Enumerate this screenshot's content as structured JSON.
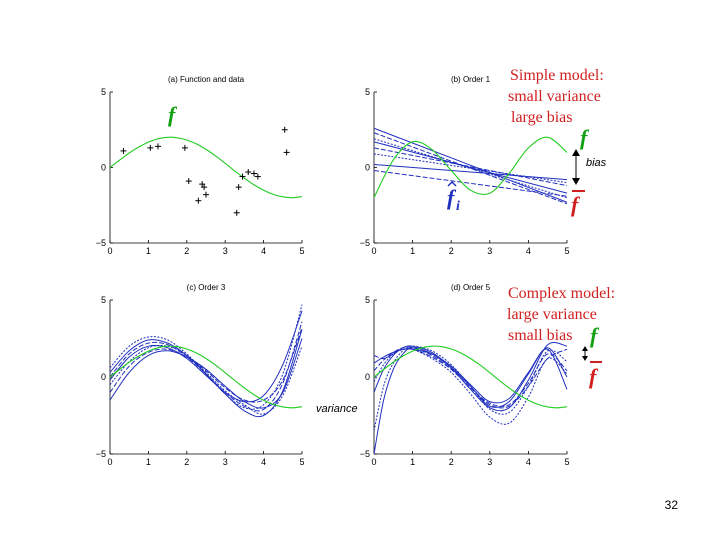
{
  "page_number": "32",
  "colors": {
    "true_function": "#22cc22",
    "fits": "#1f2fbf",
    "annotation_red": "#d02020",
    "annotation_green": "#12a012",
    "data_marker": "#000000"
  },
  "annotations": {
    "simple_model": [
      "Simple model:",
      "small variance",
      "large bias"
    ],
    "complex_model": [
      "Complex model:",
      "large variance",
      "small bias"
    ],
    "f_label": "f",
    "f_bar_label": "f",
    "f_hat_label": "f",
    "f_hat_subscript": "i",
    "bias_label": "bias",
    "variance_label": "variance"
  },
  "chart_data": [
    {
      "type": "line",
      "title": "(a) Function and data",
      "xlim": [
        0,
        5
      ],
      "ylim": [
        -5,
        5
      ],
      "xticks": [
        "0",
        "1",
        "2",
        "3",
        "4",
        "5"
      ],
      "yticks": [
        "-5",
        "0",
        "5"
      ],
      "series": [
        {
          "name": "f",
          "kind": "true_function",
          "x": [
            0.0,
            0.25,
            0.5,
            0.75,
            1.0,
            1.25,
            1.5,
            1.75,
            2.0,
            2.25,
            2.5,
            2.75,
            3.0,
            3.25,
            3.5,
            3.75,
            4.0,
            4.25,
            4.5,
            4.75,
            5.0
          ],
          "y": [
            0.0,
            0.49,
            0.96,
            1.36,
            1.68,
            1.9,
            2.0,
            1.97,
            1.82,
            1.56,
            1.2,
            0.77,
            0.28,
            -0.23,
            -0.71,
            -1.15,
            -1.51,
            -1.78,
            -1.94,
            -2.0,
            -1.93
          ]
        }
      ],
      "scatter": {
        "marker": "+",
        "x": [
          0.35,
          1.05,
          1.25,
          1.95,
          2.05,
          2.3,
          2.4,
          2.45,
          2.5,
          3.3,
          3.35,
          3.45,
          3.6,
          3.75,
          3.85,
          4.55,
          4.6
        ],
        "y": [
          1.1,
          1.3,
          1.4,
          1.3,
          -0.9,
          -2.2,
          -1.1,
          -1.3,
          -1.8,
          -3.0,
          -1.3,
          -0.6,
          -0.3,
          -0.4,
          -0.6,
          2.5,
          1.0
        ]
      }
    },
    {
      "type": "line",
      "title": "(b) Order 1",
      "xlim": [
        0,
        5
      ],
      "ylim": [
        -5,
        5
      ],
      "xticks": [
        "0",
        "1",
        "2",
        "3",
        "4",
        "5"
      ],
      "yticks": [
        "-5",
        "0",
        "5"
      ],
      "true_function": {
        "x": [
          0.0,
          0.5,
          1.0,
          1.5,
          2.0,
          2.5,
          3.0,
          3.5,
          4.0,
          4.5,
          5.0
        ],
        "y": [
          -2.0,
          0.5,
          1.7,
          1.2,
          -0.2,
          -1.5,
          -1.7,
          -0.4,
          1.3,
          2.0,
          1.0
        ]
      },
      "fits": [
        {
          "x": [
            0,
            5
          ],
          "y": [
            2.6,
            -2.3
          ]
        },
        {
          "x": [
            0,
            5
          ],
          "y": [
            2.3,
            -2.4
          ]
        },
        {
          "x": [
            0,
            5
          ],
          "y": [
            1.9,
            -2.0
          ]
        },
        {
          "x": [
            0,
            5
          ],
          "y": [
            1.7,
            -1.7
          ]
        },
        {
          "x": [
            0,
            5
          ],
          "y": [
            1.3,
            -1.2
          ]
        },
        {
          "x": [
            0,
            5
          ],
          "y": [
            0.9,
            -1.0
          ]
        },
        {
          "x": [
            0,
            5
          ],
          "y": [
            0.2,
            -0.8
          ]
        },
        {
          "x": [
            0,
            5
          ],
          "y": [
            -0.2,
            -1.9
          ]
        }
      ]
    },
    {
      "type": "line",
      "title": "(c) Order 3",
      "xlim": [
        0,
        5
      ],
      "ylim": [
        -5,
        5
      ],
      "xticks": [
        "0",
        "1",
        "2",
        "3",
        "4",
        "5"
      ],
      "yticks": [
        "-5",
        "0",
        "5"
      ],
      "true_function": {
        "x": [
          0.0,
          0.25,
          0.5,
          0.75,
          1.0,
          1.25,
          1.5,
          1.75,
          2.0,
          2.25,
          2.5,
          2.75,
          3.0,
          3.25,
          3.5,
          3.75,
          4.0,
          4.25,
          4.5,
          4.75,
          5.0
        ],
        "y": [
          0.0,
          0.49,
          0.96,
          1.36,
          1.68,
          1.9,
          2.0,
          1.97,
          1.82,
          1.56,
          1.2,
          0.77,
          0.28,
          -0.23,
          -0.71,
          -1.15,
          -1.51,
          -1.78,
          -1.94,
          -2.0,
          -1.93
        ]
      },
      "fits": [
        {
          "x": [
            0.0,
            0.5,
            1.0,
            1.5,
            2.0,
            2.5,
            3.0,
            3.5,
            4.0,
            4.5,
            5.0
          ],
          "y": [
            -0.2,
            1.3,
            2.0,
            1.9,
            1.2,
            0.1,
            -1.0,
            -1.6,
            -1.2,
            0.8,
            4.3
          ]
        },
        {
          "x": [
            0.0,
            0.5,
            1.0,
            1.5,
            2.0,
            2.5,
            3.0,
            3.5,
            4.0,
            4.5,
            5.0
          ],
          "y": [
            -1.0,
            0.7,
            1.6,
            1.8,
            1.3,
            0.4,
            -0.7,
            -1.5,
            -1.5,
            -0.2,
            3.2
          ]
        },
        {
          "x": [
            0.0,
            0.5,
            1.0,
            1.5,
            2.0,
            2.5,
            3.0,
            3.5,
            4.0,
            4.5,
            5.0
          ],
          "y": [
            0.6,
            2.0,
            2.6,
            2.4,
            1.5,
            0.2,
            -1.1,
            -2.0,
            -1.8,
            0.2,
            4.7
          ]
        },
        {
          "x": [
            0.0,
            0.5,
            1.0,
            1.5,
            2.0,
            2.5,
            3.0,
            3.5,
            4.0,
            4.5,
            5.0
          ],
          "y": [
            -1.5,
            0.3,
            1.4,
            1.7,
            1.3,
            0.5,
            -0.6,
            -1.6,
            -2.0,
            -1.0,
            2.5
          ]
        },
        {
          "x": [
            0.0,
            0.5,
            1.0,
            1.5,
            2.0,
            2.5,
            3.0,
            3.5,
            4.0,
            4.5,
            5.0
          ],
          "y": [
            0.0,
            1.5,
            2.2,
            2.1,
            1.3,
            0.2,
            -1.0,
            -1.9,
            -2.1,
            -0.4,
            3.6
          ]
        },
        {
          "x": [
            0.0,
            0.5,
            1.0,
            1.5,
            2.0,
            2.5,
            3.0,
            3.5,
            4.0,
            4.5,
            5.0
          ],
          "y": [
            -0.5,
            1.0,
            1.9,
            2.0,
            1.4,
            0.3,
            -0.9,
            -1.8,
            -2.4,
            -1.2,
            2.0
          ]
        },
        {
          "x": [
            0.0,
            0.5,
            1.0,
            1.5,
            2.0,
            2.5,
            3.0,
            3.5,
            4.0,
            4.5,
            5.0
          ],
          "y": [
            0.3,
            1.7,
            2.4,
            2.2,
            1.4,
            0.2,
            -1.1,
            -2.2,
            -2.5,
            -0.9,
            3.1
          ]
        }
      ]
    },
    {
      "type": "line",
      "title": "(d) Order 5",
      "xlim": [
        0,
        5
      ],
      "ylim": [
        -5,
        5
      ],
      "xticks": [
        "0",
        "1",
        "2",
        "3",
        "4",
        "5"
      ],
      "yticks": [
        "-5",
        "0",
        "5"
      ],
      "true_function": {
        "x": [
          0.0,
          0.25,
          0.5,
          0.75,
          1.0,
          1.25,
          1.5,
          1.75,
          2.0,
          2.25,
          2.5,
          2.75,
          3.0,
          3.25,
          3.5,
          3.75,
          4.0,
          4.25,
          4.5,
          4.75,
          5.0
        ],
        "y": [
          0.0,
          0.49,
          0.96,
          1.36,
          1.68,
          1.9,
          2.0,
          1.97,
          1.82,
          1.56,
          1.2,
          0.77,
          0.28,
          -0.23,
          -0.71,
          -1.15,
          -1.51,
          -1.78,
          -1.94,
          -2.0,
          -1.93
        ]
      },
      "fits": [
        {
          "x": [
            0.0,
            0.25,
            0.5,
            0.75,
            1.0,
            1.5,
            2.0,
            2.5,
            3.0,
            3.5,
            4.0,
            4.5,
            5.0
          ],
          "y": [
            -5.0,
            -1.5,
            0.5,
            1.5,
            1.9,
            1.5,
            0.6,
            -0.6,
            -1.9,
            -1.6,
            0.2,
            1.9,
            0.0
          ]
        },
        {
          "x": [
            0.0,
            0.25,
            0.5,
            0.75,
            1.0,
            1.5,
            2.0,
            2.5,
            3.0,
            3.5,
            4.0,
            4.5,
            5.0
          ],
          "y": [
            1.4,
            1.2,
            1.5,
            1.8,
            1.8,
            1.3,
            0.5,
            -0.7,
            -1.7,
            -1.8,
            -0.4,
            1.5,
            0.4
          ]
        },
        {
          "x": [
            0.0,
            0.25,
            0.5,
            0.75,
            1.0,
            1.5,
            2.0,
            2.5,
            3.0,
            3.5,
            4.0,
            4.5,
            5.0
          ],
          "y": [
            -3.5,
            -0.6,
            0.9,
            1.7,
            2.0,
            1.7,
            0.8,
            -0.6,
            -2.1,
            -2.3,
            -0.6,
            1.7,
            1.0
          ]
        },
        {
          "x": [
            0.0,
            0.25,
            0.5,
            0.75,
            1.0,
            1.5,
            2.0,
            2.5,
            3.0,
            3.5,
            4.0,
            4.5,
            5.0
          ],
          "y": [
            -1.0,
            0.5,
            1.4,
            1.9,
            2.0,
            1.6,
            0.6,
            -0.8,
            -2.0,
            -2.0,
            -0.2,
            2.1,
            2.0
          ]
        },
        {
          "x": [
            0.0,
            0.25,
            0.5,
            0.75,
            1.0,
            1.5,
            2.0,
            2.5,
            3.0,
            3.5,
            4.0,
            4.5,
            5.0
          ],
          "y": [
            0.4,
            1.1,
            1.6,
            1.9,
            1.9,
            1.4,
            0.5,
            -0.7,
            -1.8,
            -1.9,
            -0.6,
            1.2,
            1.8
          ]
        },
        {
          "x": [
            0.0,
            0.25,
            0.5,
            0.75,
            1.0,
            1.5,
            2.0,
            2.5,
            3.0,
            3.5,
            4.0,
            4.5,
            5.0
          ],
          "y": [
            -0.3,
            0.8,
            1.5,
            1.8,
            1.8,
            1.2,
            0.3,
            -1.1,
            -2.6,
            -3.0,
            -1.3,
            1.2,
            0.2
          ]
        },
        {
          "x": [
            0.0,
            0.25,
            0.5,
            0.75,
            1.0,
            1.5,
            2.0,
            2.5,
            3.0,
            3.5,
            4.0,
            4.5,
            5.0
          ],
          "y": [
            0.9,
            1.3,
            1.6,
            1.8,
            1.8,
            1.5,
            0.7,
            -0.5,
            -1.6,
            -1.4,
            0.3,
            1.8,
            -0.8
          ]
        }
      ]
    }
  ]
}
